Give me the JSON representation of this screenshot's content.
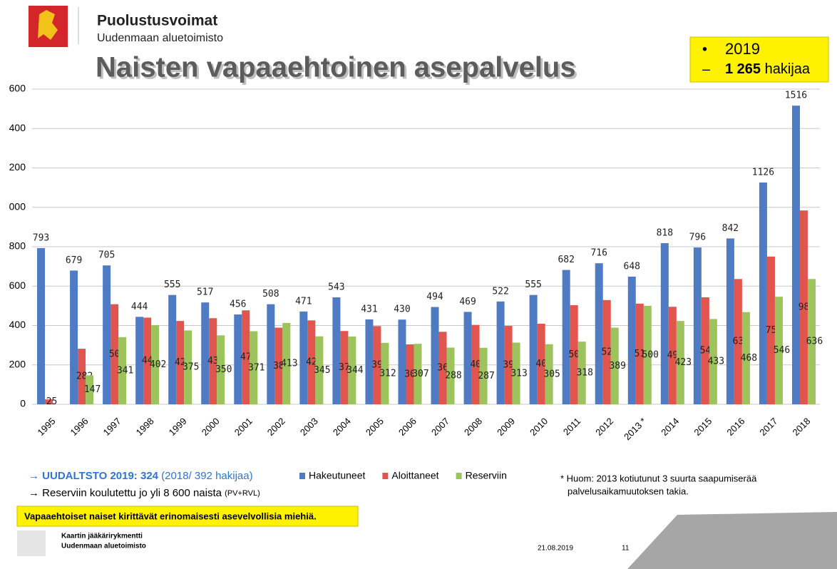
{
  "slide": {
    "org": "Puolustusvoimat",
    "unit": "Uudenmaan aluetoimisto",
    "highlight": [
      {
        "bullet": "•",
        "text": "2019"
      },
      {
        "bullet": "–",
        "bold": "1 265",
        "text": "hakijaa"
      }
    ],
    "note_uudaltsto_bold": "→ UUDALTSTO 2019: 324",
    "note_uudaltsto_rest": "(2018/ 392 hakijaa)",
    "note_reserve": "→ Reserviin koulutettu jo yli 8 600 naista",
    "note_reserve_small": "(PV+RVL)",
    "footnote": [
      "* Huom: 2013 kotiutunut 3 suurta saapumiserää",
      "palvelusaikamuutoksen takia."
    ],
    "banner": "Vapaaehtoiset naiset kirittävät erinomaisesti asevelvollisia miehiä.",
    "footer_org": "Kaartin jääkärirykmentti",
    "footer_unit": "Uudenmaan aluetoimisto",
    "date": "21.08.2019",
    "page": "11"
  },
  "chart_data": {
    "type": "bar",
    "title": "Naisten vapaaehtoinen asepalvelus",
    "categories": [
      "1995",
      "1996",
      "1997",
      "1998",
      "1999",
      "2000",
      "2001",
      "2002",
      "2003",
      "2004",
      "2005",
      "2006",
      "2007",
      "2008",
      "2009",
      "2010",
      "2011",
      "2012",
      "2013 *",
      "2014",
      "2015",
      "2016",
      "2017",
      "2018"
    ],
    "series": [
      {
        "name": "Hakeutuneet",
        "color": "#4f7bc4",
        "values": [
          793,
          679,
          705,
          444,
          555,
          517,
          456,
          508,
          471,
          543,
          431,
          430,
          494,
          469,
          522,
          555,
          682,
          716,
          648,
          818,
          796,
          842,
          1126,
          1516
        ]
      },
      {
        "name": "Aloittaneet",
        "color": "#e0554d",
        "values": [
          25,
          282,
          508,
          440,
          423,
          437,
          477,
          389,
          426,
          372,
          397,
          304,
          368,
          403,
          398,
          409,
          503,
          529,
          511,
          495,
          543,
          636,
          750,
          984
        ]
      },
      {
        "name": "Reserviin",
        "color": "#9cc35c",
        "values": [
          null,
          147,
          341,
          402,
          375,
          350,
          371,
          413,
          345,
          344,
          312,
          307,
          288,
          287,
          313,
          305,
          318,
          389,
          500,
          423,
          433,
          468,
          546,
          636
        ]
      }
    ],
    "ylim": [
      0,
      1600
    ],
    "yticks": [
      0,
      200,
      400,
      600,
      800,
      {
        "value": 1000,
        "label": "000"
      },
      {
        "value": 1200,
        "label": "200"
      },
      {
        "value": 1400,
        "label": "400"
      },
      {
        "value": 1600,
        "label": "600"
      }
    ],
    "grid": true
  }
}
